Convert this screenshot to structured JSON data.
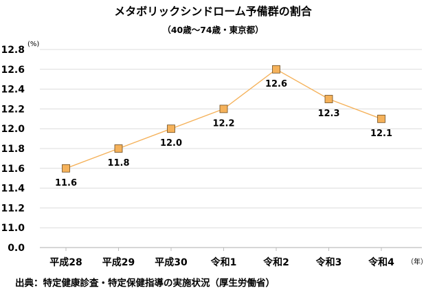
{
  "chart_data": {
    "type": "line",
    "title": "メタボリックシンドローム予備群の割合",
    "subtitle": "（40歳～74歳・東京都）",
    "y_unit": "(%)",
    "x_unit": "（年）",
    "categories": [
      "平成28",
      "平成29",
      "平成30",
      "令和1",
      "令和2",
      "令和3",
      "令和4"
    ],
    "series": [
      {
        "values": [
          11.6,
          11.8,
          12.0,
          12.2,
          12.6,
          12.3,
          12.1
        ]
      }
    ],
    "data_labels": [
      "11.6",
      "11.8",
      "12.0",
      "12.2",
      "12.6",
      "12.3",
      "12.1"
    ],
    "ylim": [
      0.0,
      12.8
    ],
    "yticks": [
      "12.8",
      "12.6",
      "12.4",
      "12.2",
      "12.0",
      "11.8",
      "11.6",
      "11.4",
      "11.2",
      "11.0",
      "0.0"
    ],
    "grid": true,
    "legend": "none",
    "colors": {
      "line": "#f5b25b",
      "marker_fill": "#f5b25b",
      "marker_stroke": "#6b4a1e",
      "grid": "#dcdcdc",
      "axis": "#bdbdbd"
    }
  },
  "source": "出典：特定健康診査・特定保健指導の実施状況（厚生労働省）"
}
